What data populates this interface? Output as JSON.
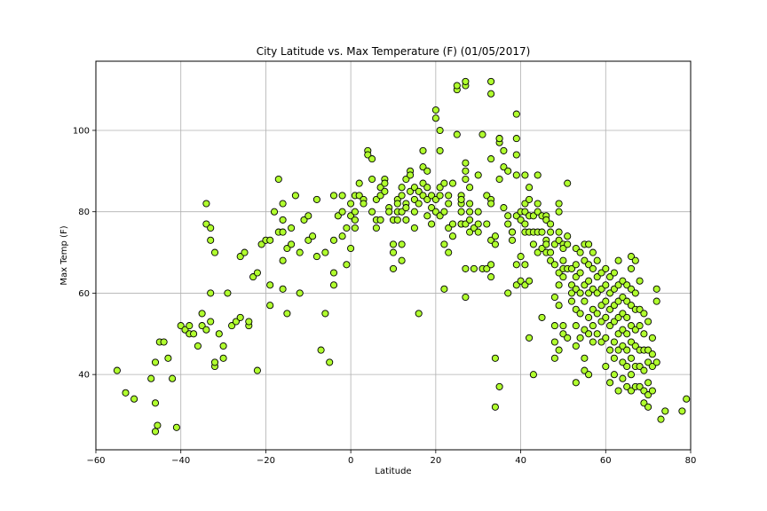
{
  "chart_data": {
    "type": "scatter",
    "title": "City Latitude vs. Max Temperature (F) (01/05/2017)",
    "xlabel": "Latitude",
    "ylabel": "Max Temp (F)",
    "xlim": [
      -60,
      80
    ],
    "ylim": [
      21.5,
      117
    ],
    "xticks": [
      -60,
      -40,
      -20,
      0,
      20,
      40,
      60,
      80
    ],
    "yticks": [
      40,
      60,
      80,
      100
    ],
    "grid": true,
    "marker_color": "#b0ff2e",
    "marker_edge_color": "#000000",
    "grid_color": "#b0b0b0",
    "points": [
      [
        -55,
        41
      ],
      [
        -53,
        35.5
      ],
      [
        -51,
        34
      ],
      [
        -47,
        39
      ],
      [
        -46,
        26
      ],
      [
        -46,
        43
      ],
      [
        -46,
        33
      ],
      [
        -45.5,
        27.5
      ],
      [
        -45,
        48
      ],
      [
        -44,
        48
      ],
      [
        -43,
        44
      ],
      [
        -42,
        39
      ],
      [
        -41,
        27
      ],
      [
        -40,
        52
      ],
      [
        -39,
        51
      ],
      [
        -38,
        50
      ],
      [
        -38,
        52
      ],
      [
        -37,
        50
      ],
      [
        -36,
        47
      ],
      [
        -35,
        55
      ],
      [
        -35,
        52
      ],
      [
        -34,
        51
      ],
      [
        -34,
        82
      ],
      [
        -34,
        77
      ],
      [
        -33,
        76
      ],
      [
        -33,
        73
      ],
      [
        -33,
        60
      ],
      [
        -33,
        53
      ],
      [
        -32,
        42
      ],
      [
        -32,
        43
      ],
      [
        -32,
        70
      ],
      [
        -31,
        50
      ],
      [
        -30,
        47
      ],
      [
        -30,
        44
      ],
      [
        -29,
        60
      ],
      [
        -28,
        52
      ],
      [
        -27,
        53
      ],
      [
        -26,
        54
      ],
      [
        -26,
        69
      ],
      [
        -25,
        70
      ],
      [
        -24,
        52
      ],
      [
        -24,
        53
      ],
      [
        -23,
        64
      ],
      [
        -22,
        41
      ],
      [
        -22,
        65
      ],
      [
        -21,
        72
      ],
      [
        -20,
        73
      ],
      [
        -19,
        57
      ],
      [
        -19,
        62
      ],
      [
        -19,
        73
      ],
      [
        -18,
        80
      ],
      [
        -17,
        88
      ],
      [
        -17,
        75
      ],
      [
        -16,
        75
      ],
      [
        -16,
        82
      ],
      [
        -16,
        78
      ],
      [
        -16,
        61
      ],
      [
        -16,
        68
      ],
      [
        -15,
        55
      ],
      [
        -15,
        71
      ],
      [
        -14,
        72
      ],
      [
        -14,
        76
      ],
      [
        -13,
        84
      ],
      [
        -12,
        60
      ],
      [
        -12,
        70
      ],
      [
        -11,
        78
      ],
      [
        -10,
        79
      ],
      [
        -10,
        73
      ],
      [
        -9,
        74
      ],
      [
        -8,
        83
      ],
      [
        -8,
        69
      ],
      [
        -7,
        46
      ],
      [
        -6,
        55
      ],
      [
        -6,
        70
      ],
      [
        -5,
        43
      ],
      [
        -4,
        62
      ],
      [
        -4,
        65
      ],
      [
        -4,
        73
      ],
      [
        -4,
        84
      ],
      [
        -3,
        79
      ],
      [
        -2,
        80
      ],
      [
        -2,
        84
      ],
      [
        -2,
        74
      ],
      [
        -1,
        76
      ],
      [
        -1,
        67
      ],
      [
        0,
        79
      ],
      [
        0,
        82
      ],
      [
        0,
        71
      ],
      [
        1,
        80
      ],
      [
        1,
        76
      ],
      [
        1,
        84
      ],
      [
        1,
        78
      ],
      [
        2,
        87
      ],
      [
        2,
        84
      ],
      [
        3,
        83
      ],
      [
        3,
        82
      ],
      [
        4,
        95
      ],
      [
        4,
        94
      ],
      [
        5,
        88
      ],
      [
        5,
        80
      ],
      [
        5,
        93
      ],
      [
        6,
        78
      ],
      [
        6,
        83
      ],
      [
        6,
        76
      ],
      [
        7,
        86
      ],
      [
        7,
        84
      ],
      [
        7,
        78
      ],
      [
        8,
        88
      ],
      [
        8,
        87
      ],
      [
        8,
        85
      ],
      [
        9,
        81
      ],
      [
        9,
        80
      ],
      [
        10,
        72
      ],
      [
        10,
        70
      ],
      [
        10,
        78
      ],
      [
        10,
        66
      ],
      [
        11,
        83
      ],
      [
        11,
        80
      ],
      [
        11,
        78
      ],
      [
        11,
        82
      ],
      [
        12,
        80
      ],
      [
        12,
        84
      ],
      [
        12,
        86
      ],
      [
        12,
        68
      ],
      [
        12,
        72
      ],
      [
        13,
        82
      ],
      [
        13,
        81
      ],
      [
        13,
        78
      ],
      [
        13,
        88
      ],
      [
        14,
        90
      ],
      [
        14,
        85
      ],
      [
        14,
        89
      ],
      [
        15,
        76
      ],
      [
        15,
        80
      ],
      [
        15,
        83
      ],
      [
        15,
        86
      ],
      [
        16,
        85
      ],
      [
        16,
        82
      ],
      [
        16,
        55
      ],
      [
        17,
        87
      ],
      [
        17,
        95
      ],
      [
        17,
        91
      ],
      [
        17,
        84
      ],
      [
        18,
        83
      ],
      [
        18,
        90
      ],
      [
        18,
        79
      ],
      [
        18,
        86
      ],
      [
        19,
        77
      ],
      [
        19,
        81
      ],
      [
        19,
        84
      ],
      [
        20,
        83
      ],
      [
        20,
        80
      ],
      [
        20,
        105
      ],
      [
        20,
        103
      ],
      [
        21,
        100
      ],
      [
        21,
        95
      ],
      [
        21,
        86
      ],
      [
        21,
        84
      ],
      [
        21,
        79
      ],
      [
        22,
        87
      ],
      [
        22,
        80
      ],
      [
        22,
        61
      ],
      [
        22,
        72
      ],
      [
        23,
        76
      ],
      [
        23,
        82
      ],
      [
        23,
        84
      ],
      [
        23,
        70
      ],
      [
        24,
        87
      ],
      [
        24,
        74
      ],
      [
        24,
        77
      ],
      [
        25,
        110
      ],
      [
        25,
        111
      ],
      [
        25,
        99
      ],
      [
        26,
        84
      ],
      [
        26,
        82
      ],
      [
        26,
        83
      ],
      [
        26,
        80
      ],
      [
        26,
        77
      ],
      [
        26,
        77
      ],
      [
        27,
        111
      ],
      [
        27,
        112
      ],
      [
        27,
        90
      ],
      [
        27,
        92
      ],
      [
        27,
        88
      ],
      [
        27,
        77
      ],
      [
        27,
        59
      ],
      [
        27,
        66
      ],
      [
        28,
        80
      ],
      [
        28,
        82
      ],
      [
        28,
        86
      ],
      [
        28,
        75
      ],
      [
        28,
        78
      ],
      [
        29,
        76
      ],
      [
        29,
        66
      ],
      [
        30,
        89
      ],
      [
        30,
        80
      ],
      [
        30,
        77
      ],
      [
        30,
        75
      ],
      [
        31,
        66
      ],
      [
        31,
        99
      ],
      [
        32,
        77
      ],
      [
        32,
        84
      ],
      [
        32,
        66
      ],
      [
        33,
        112
      ],
      [
        33,
        109
      ],
      [
        33,
        93
      ],
      [
        33,
        83
      ],
      [
        33,
        82
      ],
      [
        33,
        73
      ],
      [
        33,
        67
      ],
      [
        33,
        64
      ],
      [
        34,
        72
      ],
      [
        34,
        74
      ],
      [
        34,
        44
      ],
      [
        34,
        32
      ],
      [
        35,
        97
      ],
      [
        35,
        98
      ],
      [
        35,
        98
      ],
      [
        35,
        88
      ],
      [
        35,
        37
      ],
      [
        36,
        95
      ],
      [
        36,
        91
      ],
      [
        36,
        81
      ],
      [
        37,
        90
      ],
      [
        37,
        77
      ],
      [
        37,
        79
      ],
      [
        37,
        60
      ],
      [
        38,
        75
      ],
      [
        38,
        73
      ],
      [
        38,
        75
      ],
      [
        39,
        104
      ],
      [
        39,
        98
      ],
      [
        39,
        94
      ],
      [
        39,
        89
      ],
      [
        39,
        79
      ],
      [
        39,
        67
      ],
      [
        39,
        62
      ],
      [
        40,
        80
      ],
      [
        40,
        78
      ],
      [
        40,
        69
      ],
      [
        40,
        63
      ],
      [
        41,
        89
      ],
      [
        41,
        82
      ],
      [
        41,
        80
      ],
      [
        41,
        77
      ],
      [
        41,
        75
      ],
      [
        41,
        67
      ],
      [
        41,
        62
      ],
      [
        42,
        86
      ],
      [
        42,
        83
      ],
      [
        42,
        79
      ],
      [
        42,
        75
      ],
      [
        42,
        63
      ],
      [
        42,
        49
      ],
      [
        43,
        40
      ],
      [
        43,
        79
      ],
      [
        43,
        75
      ],
      [
        43,
        72
      ],
      [
        44,
        89
      ],
      [
        44,
        82
      ],
      [
        44,
        80
      ],
      [
        44,
        75
      ],
      [
        44,
        70
      ],
      [
        45,
        71
      ],
      [
        45,
        79
      ],
      [
        45,
        54
      ],
      [
        45,
        75
      ],
      [
        46,
        79
      ],
      [
        46,
        78
      ],
      [
        46,
        73
      ],
      [
        46,
        70
      ],
      [
        46,
        72
      ],
      [
        47,
        75
      ],
      [
        47,
        77
      ],
      [
        47,
        70
      ],
      [
        47,
        68
      ],
      [
        48,
        59
      ],
      [
        48,
        52
      ],
      [
        48,
        48
      ],
      [
        48,
        44
      ],
      [
        48,
        72
      ],
      [
        48,
        67
      ],
      [
        49,
        82
      ],
      [
        49,
        80
      ],
      [
        49,
        75
      ],
      [
        49,
        73
      ],
      [
        49,
        65
      ],
      [
        49,
        62
      ],
      [
        49,
        57
      ],
      [
        49,
        46
      ],
      [
        50,
        72
      ],
      [
        50,
        71
      ],
      [
        50,
        68
      ],
      [
        50,
        66
      ],
      [
        50,
        64
      ],
      [
        50,
        52
      ],
      [
        50,
        50
      ],
      [
        51,
        87
      ],
      [
        51,
        74
      ],
      [
        51,
        72
      ],
      [
        51,
        66
      ],
      [
        51,
        49
      ],
      [
        52,
        66
      ],
      [
        52,
        62
      ],
      [
        52,
        60
      ],
      [
        52,
        58
      ],
      [
        53,
        71
      ],
      [
        53,
        67
      ],
      [
        53,
        64
      ],
      [
        53,
        61
      ],
      [
        53,
        56
      ],
      [
        53,
        52
      ],
      [
        53,
        47
      ],
      [
        53,
        38
      ],
      [
        54,
        70
      ],
      [
        54,
        65
      ],
      [
        54,
        60
      ],
      [
        54,
        55
      ],
      [
        54,
        49
      ],
      [
        55,
        72
      ],
      [
        55,
        68
      ],
      [
        55,
        62
      ],
      [
        55,
        58
      ],
      [
        55,
        51
      ],
      [
        55,
        44
      ],
      [
        55,
        41
      ],
      [
        56,
        72
      ],
      [
        56,
        67
      ],
      [
        56,
        63
      ],
      [
        56,
        60
      ],
      [
        56,
        54
      ],
      [
        56,
        50
      ],
      [
        56,
        40
      ],
      [
        57,
        70
      ],
      [
        57,
        66
      ],
      [
        57,
        61
      ],
      [
        57,
        56
      ],
      [
        57,
        52
      ],
      [
        57,
        48
      ],
      [
        58,
        68
      ],
      [
        58,
        64
      ],
      [
        58,
        60
      ],
      [
        58,
        55
      ],
      [
        58,
        50
      ],
      [
        59,
        65
      ],
      [
        59,
        61
      ],
      [
        59,
        57
      ],
      [
        59,
        53
      ],
      [
        59,
        48
      ],
      [
        60,
        66
      ],
      [
        60,
        62
      ],
      [
        60,
        58
      ],
      [
        60,
        54
      ],
      [
        60,
        49
      ],
      [
        60,
        42
      ],
      [
        61,
        64
      ],
      [
        61,
        60
      ],
      [
        61,
        56
      ],
      [
        61,
        52
      ],
      [
        61,
        46
      ],
      [
        61,
        38
      ],
      [
        62,
        65
      ],
      [
        62,
        61
      ],
      [
        62,
        57
      ],
      [
        62,
        53
      ],
      [
        62,
        48
      ],
      [
        62,
        44
      ],
      [
        62,
        40
      ],
      [
        63,
        68
      ],
      [
        63,
        62
      ],
      [
        63,
        58
      ],
      [
        63,
        54
      ],
      [
        63,
        50
      ],
      [
        63,
        46
      ],
      [
        63,
        36
      ],
      [
        64,
        63
      ],
      [
        64,
        59
      ],
      [
        64,
        55
      ],
      [
        64,
        51
      ],
      [
        64,
        47
      ],
      [
        64,
        43
      ],
      [
        64,
        39
      ],
      [
        65,
        62
      ],
      [
        65,
        58
      ],
      [
        65,
        54
      ],
      [
        65,
        50
      ],
      [
        65,
        46
      ],
      [
        65,
        42
      ],
      [
        65,
        37
      ],
      [
        66,
        69
      ],
      [
        66,
        66
      ],
      [
        66,
        61
      ],
      [
        66,
        57
      ],
      [
        66,
        52
      ],
      [
        66,
        48
      ],
      [
        66,
        44
      ],
      [
        66,
        40
      ],
      [
        66,
        36
      ],
      [
        67,
        68
      ],
      [
        67,
        60
      ],
      [
        67,
        56
      ],
      [
        67,
        51
      ],
      [
        67,
        47
      ],
      [
        67,
        42
      ],
      [
        67,
        37
      ],
      [
        68,
        63
      ],
      [
        68,
        56
      ],
      [
        68,
        52
      ],
      [
        68,
        46
      ],
      [
        68,
        42
      ],
      [
        68,
        37
      ],
      [
        69,
        55
      ],
      [
        69,
        50
      ],
      [
        69,
        46
      ],
      [
        69,
        41
      ],
      [
        69,
        36
      ],
      [
        69,
        33
      ],
      [
        70,
        53
      ],
      [
        70,
        46
      ],
      [
        70,
        43
      ],
      [
        70,
        38
      ],
      [
        70,
        35
      ],
      [
        70,
        32
      ],
      [
        71,
        49
      ],
      [
        71,
        45
      ],
      [
        71,
        42
      ],
      [
        71,
        36
      ],
      [
        72,
        61
      ],
      [
        72,
        58
      ],
      [
        72,
        43
      ],
      [
        73,
        29
      ],
      [
        74,
        31
      ],
      [
        78,
        31
      ],
      [
        79,
        34
      ]
    ]
  }
}
